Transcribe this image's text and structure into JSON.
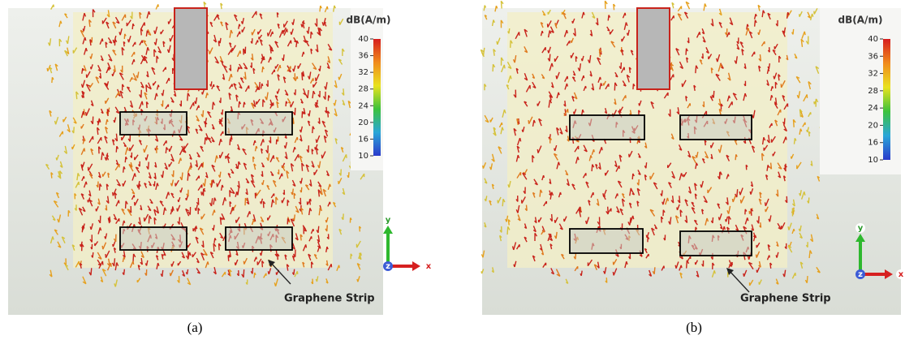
{
  "panels": [
    {
      "caption": "(a)",
      "colorbar": {
        "unit": "dB(A/m)",
        "ticks": [
          40,
          36,
          32,
          28,
          24,
          20,
          16,
          10
        ]
      },
      "axes": {
        "y": "y",
        "z": "z",
        "x": "x"
      },
      "annotation": "Graphene Strip"
    },
    {
      "caption": "(b)",
      "colorbar": {
        "unit": "dB(A/m)",
        "ticks": [
          40,
          36,
          32,
          28,
          24,
          20,
          16,
          10
        ]
      },
      "axes": {
        "y": "y",
        "z": "z",
        "x": "x"
      },
      "annotation": "Graphene Strip"
    }
  ]
}
